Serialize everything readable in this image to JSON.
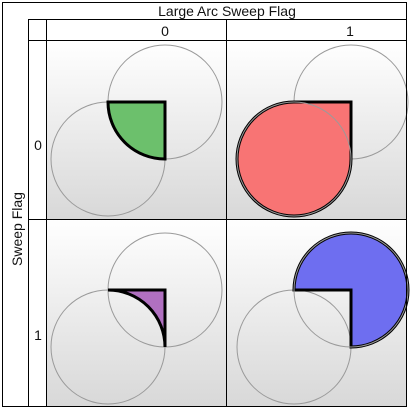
{
  "header": {
    "title": "Large Arc Sweep Flag",
    "col_labels": [
      "0",
      "1"
    ]
  },
  "side": {
    "title": "Sweep Flag",
    "row_labels": [
      "0",
      "1"
    ]
  },
  "colors": {
    "grid_line": "#000000",
    "circle_stroke": "#9a9a9a",
    "cell_gradient_top": "#ffffff",
    "cell_gradient_bottom": "#d8d8d8",
    "fill_00": "#6cc06c",
    "fill_01": "#f87474",
    "fill_10": "#b070c0",
    "fill_11": "#6e6ef0"
  }
}
